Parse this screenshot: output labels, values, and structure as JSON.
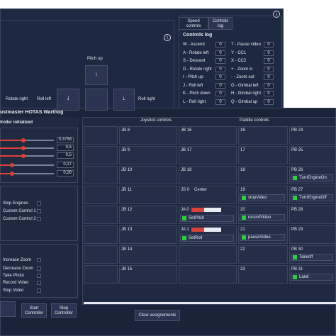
{
  "back_window": {
    "keys": {
      "pitch_up": "Pitch up",
      "key_i": "I",
      "rotate_right": "Rotate right",
      "roll_left": "Roll left",
      "key_j": "J",
      "key_l": "L",
      "roll_right": "Roll right"
    },
    "tabs": [
      "Speed controls",
      "Controls log"
    ],
    "log_title": "Controls log",
    "log": [
      [
        [
          "W - Ascend",
          0
        ],
        [
          "T - Pause video",
          0
        ]
      ],
      [
        [
          "A - Rotate left",
          0
        ],
        [
          "Y - CC1",
          0
        ]
      ],
      [
        [
          "S - Descent",
          0
        ],
        [
          "X - CC2",
          0
        ]
      ],
      [
        [
          "D - Rotate right",
          0
        ],
        [
          "+ - Zoom in",
          0
        ]
      ],
      [
        [
          "I - Pitch up",
          0
        ],
        [
          "- - Zoom out",
          0
        ]
      ],
      [
        [
          "J - Roll left",
          0
        ],
        [
          "G - Gimbal left",
          0
        ]
      ],
      [
        [
          "K - Pitch down",
          0
        ],
        [
          "H - Gimbal right",
          0
        ]
      ],
      [
        [
          "L - Roll right",
          0
        ],
        [
          "Q - Gimbal up",
          0
        ]
      ]
    ]
  },
  "front_window": {
    "title": "ustmaster HOTAS Warthog",
    "status": "troller initialized",
    "sliders": [
      "0,3758",
      "0,5",
      "0,5",
      "0,27",
      "0,26"
    ],
    "commands_1": [
      "Stop Engines",
      "Custom Control 1",
      "Custom Control 2"
    ],
    "commands_2": [
      "Increase Zoom",
      "Decrease Zoom",
      "Take Photo",
      "Record Video",
      "Stop Video"
    ],
    "buttons": [
      "Start Controller",
      "Stop Controller"
    ],
    "joystick_header": "Joystick controls",
    "paddle_header": "Paddle controls",
    "columns": [
      [
        {
          "label": "JB 8"
        },
        {
          "label": "JB 9"
        },
        {
          "label": "JB 10"
        },
        {
          "label": "JB 11"
        },
        {
          "label": "JB 12"
        },
        {
          "label": "JB 13"
        },
        {
          "label": "JB 14"
        },
        {
          "label": "JB 15"
        }
      ],
      [
        {
          "label": "JB 16"
        },
        {
          "label": "JB 17"
        },
        {
          "label": "JB 18"
        },
        {
          "label": "JS 0",
          "action": "Center"
        },
        {
          "label": "JA 0",
          "action": "SetPitch"
        },
        {
          "label": "JA 1",
          "action": "SetRoll"
        },
        {},
        {}
      ],
      [
        {
          "label": "16"
        },
        {
          "label": "17"
        },
        {
          "label": "18"
        },
        {
          "label": "19",
          "action": "stopVideo"
        },
        {
          "label": "20",
          "action": "recordVideo"
        },
        {
          "label": "21",
          "action": "pauseVideo"
        },
        {
          "label": "22"
        },
        {
          "label": "23"
        }
      ],
      [
        {
          "label": "PB 24"
        },
        {
          "label": "PB 25"
        },
        {
          "label": "PB 26",
          "action": "TurnEngineOn"
        },
        {
          "label": "PB 27",
          "action": "TurnEngineOff"
        },
        {
          "label": "PB 28"
        },
        {
          "label": "PB 29"
        },
        {
          "label": "PB 30",
          "action": "Takeoff"
        },
        {
          "label": "PB 31",
          "action": "Land"
        }
      ]
    ],
    "clear_button": "Clear assignements"
  }
}
